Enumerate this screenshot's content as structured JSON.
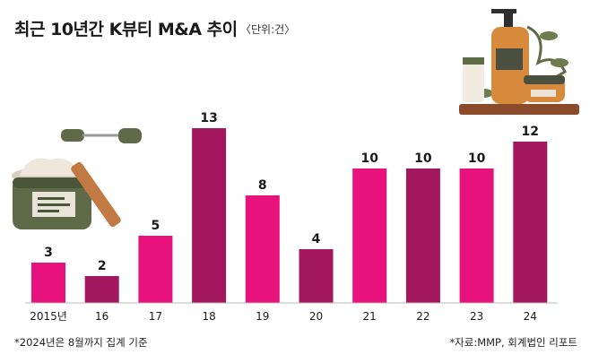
{
  "header": {
    "title": "최근 10년간 K뷰티 M&A 추이",
    "unit": "〈단위:건〉"
  },
  "footer": {
    "note": "*2024년은 8월까지 집계 기준",
    "source": "*자료:MMP, 회계법인 리포트"
  },
  "colors": {
    "pink": "#e8127c",
    "plum": "#a3175e",
    "baseline": "#b9b9b9",
    "label": "#1a1a1a"
  },
  "illustrations": [
    "cosmetic-jar-icon",
    "face-roller-icon",
    "cosmetic-bottles-icon",
    "shelf-plant-icon"
  ],
  "chart_data": {
    "type": "bar",
    "categories": [
      "2015년",
      "16",
      "17",
      "18",
      "19",
      "20",
      "21",
      "22",
      "23",
      "24"
    ],
    "values": [
      3,
      2,
      5,
      13,
      8,
      4,
      10,
      10,
      10,
      12
    ],
    "bar_colors": [
      "pink",
      "plum",
      "pink",
      "plum",
      "pink",
      "plum",
      "pink",
      "plum",
      "pink",
      "plum"
    ],
    "title": "최근 10년간 K뷰티 M&A 추이",
    "unit": "〈단위:건〉",
    "ylim": [
      0,
      13
    ],
    "grid": false,
    "legend": "none"
  }
}
